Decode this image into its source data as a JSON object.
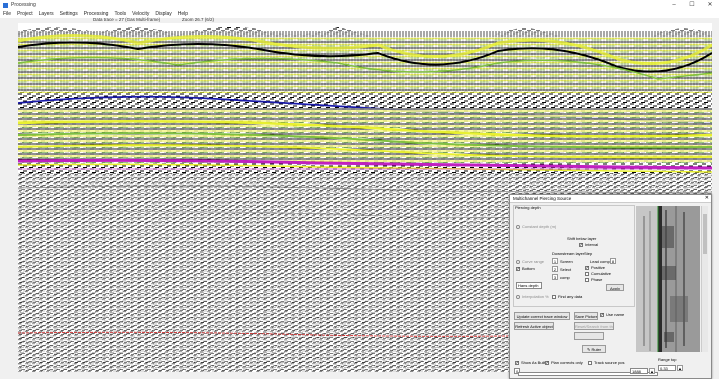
{
  "window": {
    "title": "Processing",
    "menu": [
      "File",
      "Project",
      "Layers",
      "Settings",
      "Processing",
      "Tools",
      "Velocity",
      "Display",
      "Help"
    ],
    "info_left": "Data trace = 27 (Gas Multi-frame)",
    "info_right": "Zoom 26.7 (6/2)",
    "controls": {
      "minimize": "–",
      "maximize": "☐",
      "close": "✕"
    }
  },
  "colors": {
    "horizon_blue": "#1a1aa8",
    "horizon_magenta": "#c020c0",
    "horizon_red": "#d03030",
    "seismic_yellow": "#e8f030",
    "seismic_green": "#80c040"
  },
  "dialog": {
    "title": "Multichannel Piercing Source",
    "close": "✕",
    "group_label": "Piercing depth",
    "constant_depth": "Constant depth (m)",
    "shift_below_layer": "Shift below layer",
    "interval": "Interval",
    "curve_range": "Curve range",
    "bottom": "Bottom",
    "ones_lines": "Ones lines",
    "ones_right": "Ones",
    "downstream_layer": "Downstream layer",
    "step": "Step",
    "lead_comp": "Lead comp",
    "positive": "Positive",
    "cumulative": "Cumulative",
    "phase": "Phase",
    "apply": "Apply",
    "layer_select": "Hans depth",
    "val_1": "1",
    "val_2": "2",
    "val_3": "3",
    "val_4": "8",
    "unit_1": "Screen",
    "unit_2": "Select",
    "unit_3": "comp",
    "interpolation": "Interpolation %",
    "find_any_data": "Find any data",
    "update_button": "Update correct trace window",
    "save_picture": "Save Picture",
    "use_name": "Use name",
    "refresh_button": "Refresh Active object",
    "reset_button": "Reset/Search from this",
    "ruler_button": "Ruler",
    "show_as_built": "Show As Built",
    "plan_corrects_only": "Plan corrects only",
    "track_source_pos": "Track source pos",
    "range_start": "0",
    "range_end": "1888",
    "range_top_label": "Range top",
    "range_top_value": "0.33"
  }
}
